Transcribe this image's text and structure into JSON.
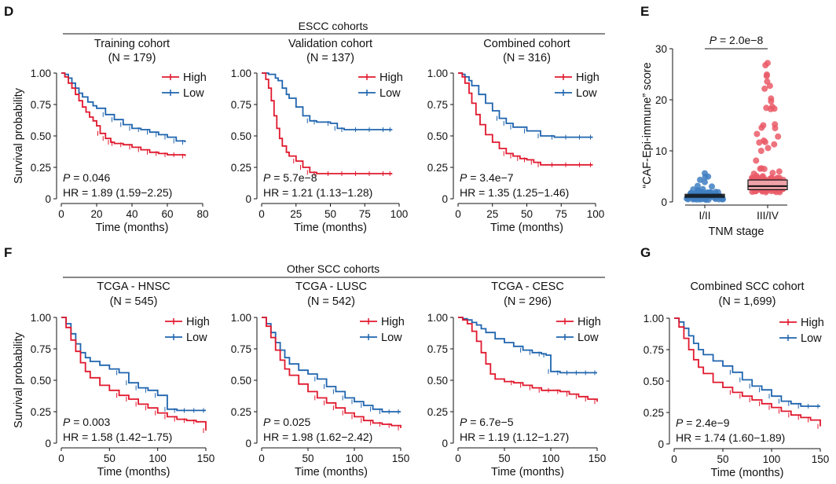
{
  "panel_letters": {
    "d": "D",
    "e": "E",
    "f": "F",
    "g": "G"
  },
  "headers": {
    "escc": "ESCC cohorts",
    "scc": "Other SCC cohorts"
  },
  "colors": {
    "high": "#e0182d",
    "low": "#1f64ae",
    "box_dots_low": "#3f7fc2",
    "box_dots_high": "#ea5a67"
  },
  "chart_data": [
    {
      "type": "line",
      "id": "training",
      "title": "Training cohort",
      "subtitle": "(N = 179)",
      "xlabel": "Time (months)",
      "ylabel": "Survival probability",
      "xlim": [
        0,
        80
      ],
      "ylim": [
        0,
        1
      ],
      "xticks": [
        "0",
        "20",
        "40",
        "60",
        "80"
      ],
      "yticks": [
        "0",
        "0.25",
        "0.50",
        "0.75",
        "1.00"
      ],
      "p_prefix": "P",
      "p_value": " = 0.046",
      "hr": "HR = 1.89 (1.59−2.25)",
      "series": [
        {
          "name": "High",
          "x": [
            0,
            2,
            4,
            6,
            8,
            10,
            12,
            14,
            16,
            18,
            20,
            22,
            25,
            28,
            30,
            35,
            40,
            45,
            50,
            55,
            60,
            65,
            70
          ],
          "y": [
            1.0,
            0.97,
            0.92,
            0.88,
            0.83,
            0.78,
            0.73,
            0.69,
            0.65,
            0.62,
            0.58,
            0.52,
            0.48,
            0.45,
            0.44,
            0.43,
            0.41,
            0.39,
            0.37,
            0.36,
            0.35,
            0.35,
            0.34
          ]
        },
        {
          "name": "Low",
          "x": [
            0,
            2,
            4,
            6,
            8,
            10,
            12,
            15,
            18,
            20,
            25,
            30,
            35,
            40,
            45,
            50,
            55,
            60,
            65,
            70
          ],
          "y": [
            1.0,
            0.99,
            0.96,
            0.92,
            0.88,
            0.84,
            0.81,
            0.77,
            0.74,
            0.72,
            0.67,
            0.63,
            0.59,
            0.56,
            0.55,
            0.53,
            0.51,
            0.49,
            0.46,
            0.45
          ]
        }
      ]
    },
    {
      "type": "line",
      "id": "validation",
      "title": "Validation cohort",
      "subtitle": "(N = 137)",
      "xlabel": "Time (months)",
      "ylabel": "",
      "xlim": [
        0,
        100
      ],
      "ylim": [
        0,
        1
      ],
      "xticks": [
        "0",
        "25",
        "50",
        "75",
        "100"
      ],
      "yticks": [
        "0",
        "0.25",
        "0.50",
        "0.75",
        "1.00"
      ],
      "p_prefix": "P",
      "p_value": " = 5.7e−8",
      "hr": "HR = 1.21 (1.13−1.28)",
      "series": [
        {
          "name": "High",
          "x": [
            0,
            3,
            5,
            7,
            9,
            11,
            13,
            15,
            18,
            20,
            25,
            30,
            35,
            40,
            50,
            60,
            70,
            80,
            90,
            95
          ],
          "y": [
            1.0,
            0.95,
            0.88,
            0.78,
            0.66,
            0.56,
            0.48,
            0.42,
            0.37,
            0.34,
            0.3,
            0.25,
            0.21,
            0.2,
            0.2,
            0.2,
            0.2,
            0.2,
            0.2,
            0.2
          ]
        },
        {
          "name": "Low",
          "x": [
            0,
            5,
            10,
            12,
            15,
            18,
            20,
            25,
            30,
            35,
            40,
            50,
            55,
            60,
            70,
            80,
            90,
            95
          ],
          "y": [
            1.0,
            0.99,
            0.96,
            0.94,
            0.88,
            0.83,
            0.8,
            0.73,
            0.66,
            0.62,
            0.61,
            0.6,
            0.56,
            0.55,
            0.55,
            0.55,
            0.55,
            0.55
          ]
        }
      ]
    },
    {
      "type": "line",
      "id": "combined",
      "title": "Combined cohort",
      "subtitle": "(N = 316)",
      "xlabel": "Time (months)",
      "ylabel": "",
      "xlim": [
        0,
        100
      ],
      "ylim": [
        0,
        1
      ],
      "xticks": [
        "0",
        "25",
        "50",
        "75",
        "100"
      ],
      "yticks": [
        "0",
        "0.25",
        "0.50",
        "0.75",
        "1.00"
      ],
      "p_prefix": "P",
      "p_value": " = 3.4e−7",
      "hr": "HR = 1.35 (1.25−1.46)",
      "series": [
        {
          "name": "High",
          "x": [
            0,
            3,
            5,
            8,
            10,
            13,
            16,
            20,
            25,
            30,
            35,
            40,
            45,
            50,
            55,
            60,
            70,
            80,
            90,
            98
          ],
          "y": [
            1.0,
            0.97,
            0.92,
            0.84,
            0.76,
            0.67,
            0.59,
            0.51,
            0.45,
            0.4,
            0.36,
            0.34,
            0.32,
            0.31,
            0.29,
            0.27,
            0.27,
            0.27,
            0.27,
            0.27
          ]
        },
        {
          "name": "Low",
          "x": [
            0,
            3,
            5,
            8,
            10,
            15,
            20,
            25,
            30,
            35,
            40,
            50,
            60,
            70,
            80,
            90,
            98
          ],
          "y": [
            1.0,
            0.99,
            0.97,
            0.94,
            0.9,
            0.83,
            0.76,
            0.7,
            0.64,
            0.6,
            0.57,
            0.54,
            0.5,
            0.49,
            0.49,
            0.49,
            0.49
          ]
        }
      ]
    },
    {
      "type": "box",
      "id": "e",
      "ylabel": "“CAF-Epi-immune” score",
      "xlabel": "TNM stage",
      "categories": [
        "I/II",
        "III/IV"
      ],
      "ylim": [
        0,
        30
      ],
      "yticks": [
        "0",
        "10",
        "20",
        "30"
      ],
      "p_prefix": "P",
      "p_value": " = 2.0e−8",
      "boxes": [
        {
          "name": "I/II",
          "q1": 0.9,
          "median": 1.2,
          "q3": 1.5,
          "max": 5.6
        },
        {
          "name": "III/IV",
          "q1": 2.4,
          "median": 3.1,
          "q3": 4.3,
          "max": 27.2
        }
      ]
    },
    {
      "type": "line",
      "id": "hnsc",
      "title": "TCGA - HNSC",
      "subtitle": "(N = 545)",
      "xlabel": "Time (months)",
      "ylabel": "Survival probability",
      "xlim": [
        0,
        150
      ],
      "ylim": [
        0,
        1
      ],
      "xticks": [
        "0",
        "50",
        "100",
        "150"
      ],
      "yticks": [
        "0",
        "0.25",
        "0.50",
        "0.75",
        "1.00"
      ],
      "p_prefix": "P",
      "p_value": " = 0.003",
      "hr": "HR = 1.58 (1.42−1.75)",
      "series": [
        {
          "name": "High",
          "x": [
            0,
            5,
            10,
            15,
            20,
            25,
            30,
            40,
            50,
            60,
            70,
            80,
            90,
            100,
            110,
            120,
            130,
            140,
            150
          ],
          "y": [
            1.0,
            0.92,
            0.82,
            0.73,
            0.64,
            0.57,
            0.52,
            0.46,
            0.42,
            0.38,
            0.35,
            0.31,
            0.28,
            0.24,
            0.21,
            0.19,
            0.18,
            0.17,
            0.1
          ]
        },
        {
          "name": "Low",
          "x": [
            0,
            5,
            10,
            15,
            20,
            25,
            30,
            40,
            50,
            60,
            70,
            80,
            90,
            100,
            110,
            120,
            130,
            140,
            150
          ],
          "y": [
            1.0,
            0.95,
            0.87,
            0.79,
            0.72,
            0.68,
            0.65,
            0.62,
            0.59,
            0.56,
            0.48,
            0.44,
            0.42,
            0.38,
            0.27,
            0.26,
            0.26,
            0.26,
            0.26
          ]
        }
      ]
    },
    {
      "type": "line",
      "id": "lusc",
      "title": "TCGA - LUSC",
      "subtitle": "(N = 542)",
      "xlabel": "Time (months)",
      "ylabel": "",
      "xlim": [
        0,
        150
      ],
      "ylim": [
        0,
        1
      ],
      "xticks": [
        "0",
        "50",
        "100",
        "150"
      ],
      "yticks": [
        "0",
        "0.25",
        "0.50",
        "0.75",
        "1.00"
      ],
      "p_prefix": "P",
      "p_value": " = 0.025",
      "hr": "HR = 1.98 (1.62−2.42)",
      "series": [
        {
          "name": "High",
          "x": [
            0,
            5,
            10,
            15,
            20,
            25,
            30,
            40,
            50,
            60,
            70,
            80,
            90,
            100,
            110,
            120,
            130,
            140,
            150
          ],
          "y": [
            1.0,
            0.93,
            0.84,
            0.74,
            0.66,
            0.59,
            0.54,
            0.47,
            0.41,
            0.36,
            0.32,
            0.28,
            0.24,
            0.21,
            0.18,
            0.16,
            0.15,
            0.14,
            0.12
          ]
        },
        {
          "name": "Low",
          "x": [
            0,
            5,
            10,
            15,
            20,
            25,
            30,
            40,
            50,
            60,
            70,
            80,
            90,
            100,
            110,
            120,
            130,
            140,
            150
          ],
          "y": [
            1.0,
            0.95,
            0.88,
            0.8,
            0.74,
            0.68,
            0.63,
            0.58,
            0.55,
            0.51,
            0.45,
            0.41,
            0.36,
            0.33,
            0.3,
            0.27,
            0.25,
            0.25,
            0.25
          ]
        }
      ]
    },
    {
      "type": "line",
      "id": "cesc",
      "title": "TCGA - CESC",
      "subtitle": "(N = 296)",
      "xlabel": "Time (months)",
      "ylabel": "",
      "xlim": [
        0,
        150
      ],
      "ylim": [
        0,
        1
      ],
      "xticks": [
        "0",
        "50",
        "100",
        "150"
      ],
      "yticks": [
        "0",
        "0.25",
        "0.50",
        "0.75",
        "1.00"
      ],
      "p_prefix": "P",
      "p_value": " = 6.7e−5",
      "hr": "HR = 1.19 (1.12−1.27)",
      "series": [
        {
          "name": "High",
          "x": [
            0,
            5,
            10,
            15,
            20,
            25,
            30,
            35,
            40,
            50,
            60,
            70,
            80,
            90,
            100,
            110,
            120,
            130,
            140,
            150
          ],
          "y": [
            1.0,
            0.98,
            0.95,
            0.89,
            0.81,
            0.72,
            0.63,
            0.55,
            0.51,
            0.49,
            0.48,
            0.46,
            0.44,
            0.42,
            0.42,
            0.41,
            0.39,
            0.37,
            0.35,
            0.33
          ]
        },
        {
          "name": "Low",
          "x": [
            0,
            5,
            10,
            15,
            20,
            25,
            30,
            40,
            50,
            60,
            70,
            80,
            90,
            95,
            100,
            110,
            120,
            130,
            140,
            150
          ],
          "y": [
            1.0,
            0.99,
            0.98,
            0.96,
            0.94,
            0.91,
            0.88,
            0.83,
            0.8,
            0.77,
            0.74,
            0.72,
            0.71,
            0.7,
            0.57,
            0.56,
            0.56,
            0.56,
            0.56,
            0.56
          ]
        }
      ]
    },
    {
      "type": "line",
      "id": "g",
      "title": "Combined SCC cohort",
      "subtitle": "(N = 1,699)",
      "xlabel": "Time (months)",
      "ylabel": "",
      "xlim": [
        0,
        150
      ],
      "ylim": [
        0,
        1
      ],
      "xticks": [
        "0",
        "50",
        "100",
        "150"
      ],
      "yticks": [
        "0",
        "0.25",
        "0.50",
        "0.75",
        "1.00"
      ],
      "p_prefix": "P",
      "p_value": " = 2.4e−9",
      "hr": "HR = 1.74 (1.60−1.89)",
      "series": [
        {
          "name": "High",
          "x": [
            0,
            5,
            10,
            15,
            20,
            25,
            30,
            40,
            50,
            60,
            70,
            80,
            90,
            100,
            110,
            120,
            130,
            140,
            150
          ],
          "y": [
            1.0,
            0.93,
            0.84,
            0.75,
            0.67,
            0.61,
            0.56,
            0.49,
            0.45,
            0.41,
            0.38,
            0.35,
            0.32,
            0.29,
            0.26,
            0.23,
            0.21,
            0.19,
            0.14
          ]
        },
        {
          "name": "Low",
          "x": [
            0,
            5,
            10,
            15,
            20,
            25,
            30,
            40,
            50,
            60,
            70,
            80,
            90,
            100,
            110,
            120,
            130,
            140,
            150
          ],
          "y": [
            1.0,
            0.97,
            0.92,
            0.86,
            0.8,
            0.75,
            0.71,
            0.66,
            0.62,
            0.57,
            0.51,
            0.46,
            0.43,
            0.38,
            0.34,
            0.32,
            0.3,
            0.3,
            0.3
          ]
        }
      ]
    }
  ]
}
